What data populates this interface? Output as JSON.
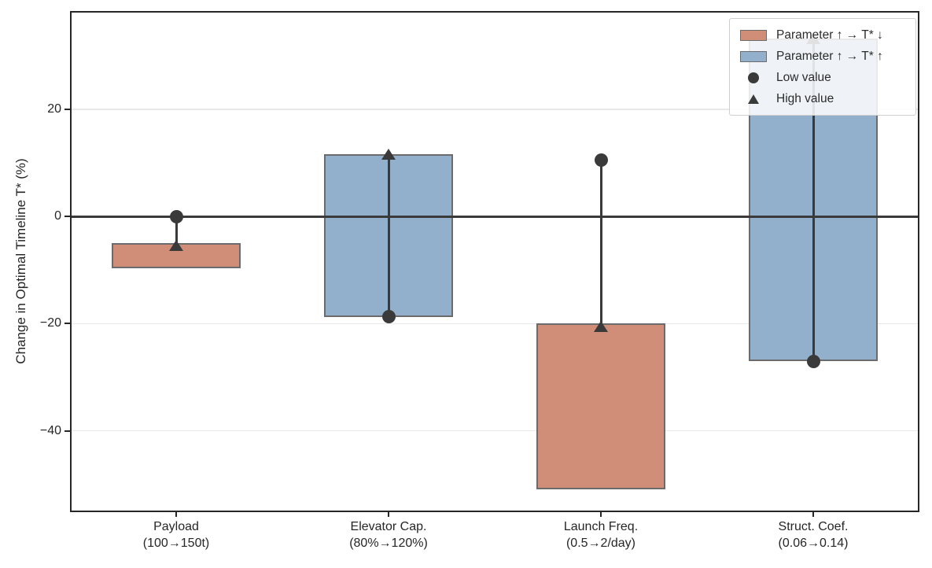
{
  "chart_data": {
    "type": "bar",
    "variant": "tornado-sensitivity",
    "title": "",
    "ylabel": "Change in Optimal Timeline T* (%)",
    "ylim": [
      -55.2,
      38.4
    ],
    "grid": "horizontal-light",
    "zero_line": 0,
    "legend_position": "upper right",
    "yticks": [
      {
        "value": 20,
        "label": "20"
      },
      {
        "value": 0,
        "label": "0"
      },
      {
        "value": -20,
        "label": "−20"
      },
      {
        "value": -40,
        "label": "−40"
      }
    ],
    "categories": [
      "Payload",
      "Elevator Cap.",
      "Launch Freq.",
      "Struct. Coef."
    ],
    "category_sublabels": [
      "(100→150t)",
      "(80%→120%)",
      "(0.5→2/day)",
      "(0.06→0.14)"
    ],
    "bars": [
      {
        "label": "Payload",
        "range_label": "(100→150t)",
        "bar_top": -5.0,
        "bar_bottom": -9.7,
        "low_marker": 0.0,
        "high_marker": -5.4,
        "color_key": "decrease"
      },
      {
        "label": "Elevator Cap.",
        "range_label": "(80%→120%)",
        "bar_top": 11.7,
        "bar_bottom": -18.7,
        "low_marker": -18.7,
        "high_marker": 11.7,
        "color_key": "increase"
      },
      {
        "label": "Launch Freq.",
        "range_label": "(0.5→2/day)",
        "bar_top": -20.0,
        "bar_bottom": -51.0,
        "low_marker": 10.5,
        "high_marker": -20.5,
        "color_key": "decrease"
      },
      {
        "label": "Struct. Coef.",
        "range_label": "(0.06→0.14)",
        "bar_top": 33.2,
        "bar_bottom": -27.0,
        "low_marker": -27.0,
        "high_marker": 33.2,
        "color_key": "increase"
      }
    ],
    "colors": {
      "decrease": "#d08d78",
      "increase": "#92b0cb",
      "bar_edge": "#6b6b6b",
      "marker": "#3a3a3a",
      "zero_line": "#3a3a3a",
      "grid": "#e8e8e8",
      "spine": "#262626",
      "background": "#ffffff"
    },
    "legend": {
      "items": [
        {
          "glyph": "patch-decrease",
          "label": "Parameter ↑ → T* ↓"
        },
        {
          "glyph": "patch-increase",
          "label": "Parameter ↑ → T* ↑"
        },
        {
          "glyph": "circle",
          "label": "Low value"
        },
        {
          "glyph": "triangle",
          "label": "High value"
        }
      ]
    }
  }
}
